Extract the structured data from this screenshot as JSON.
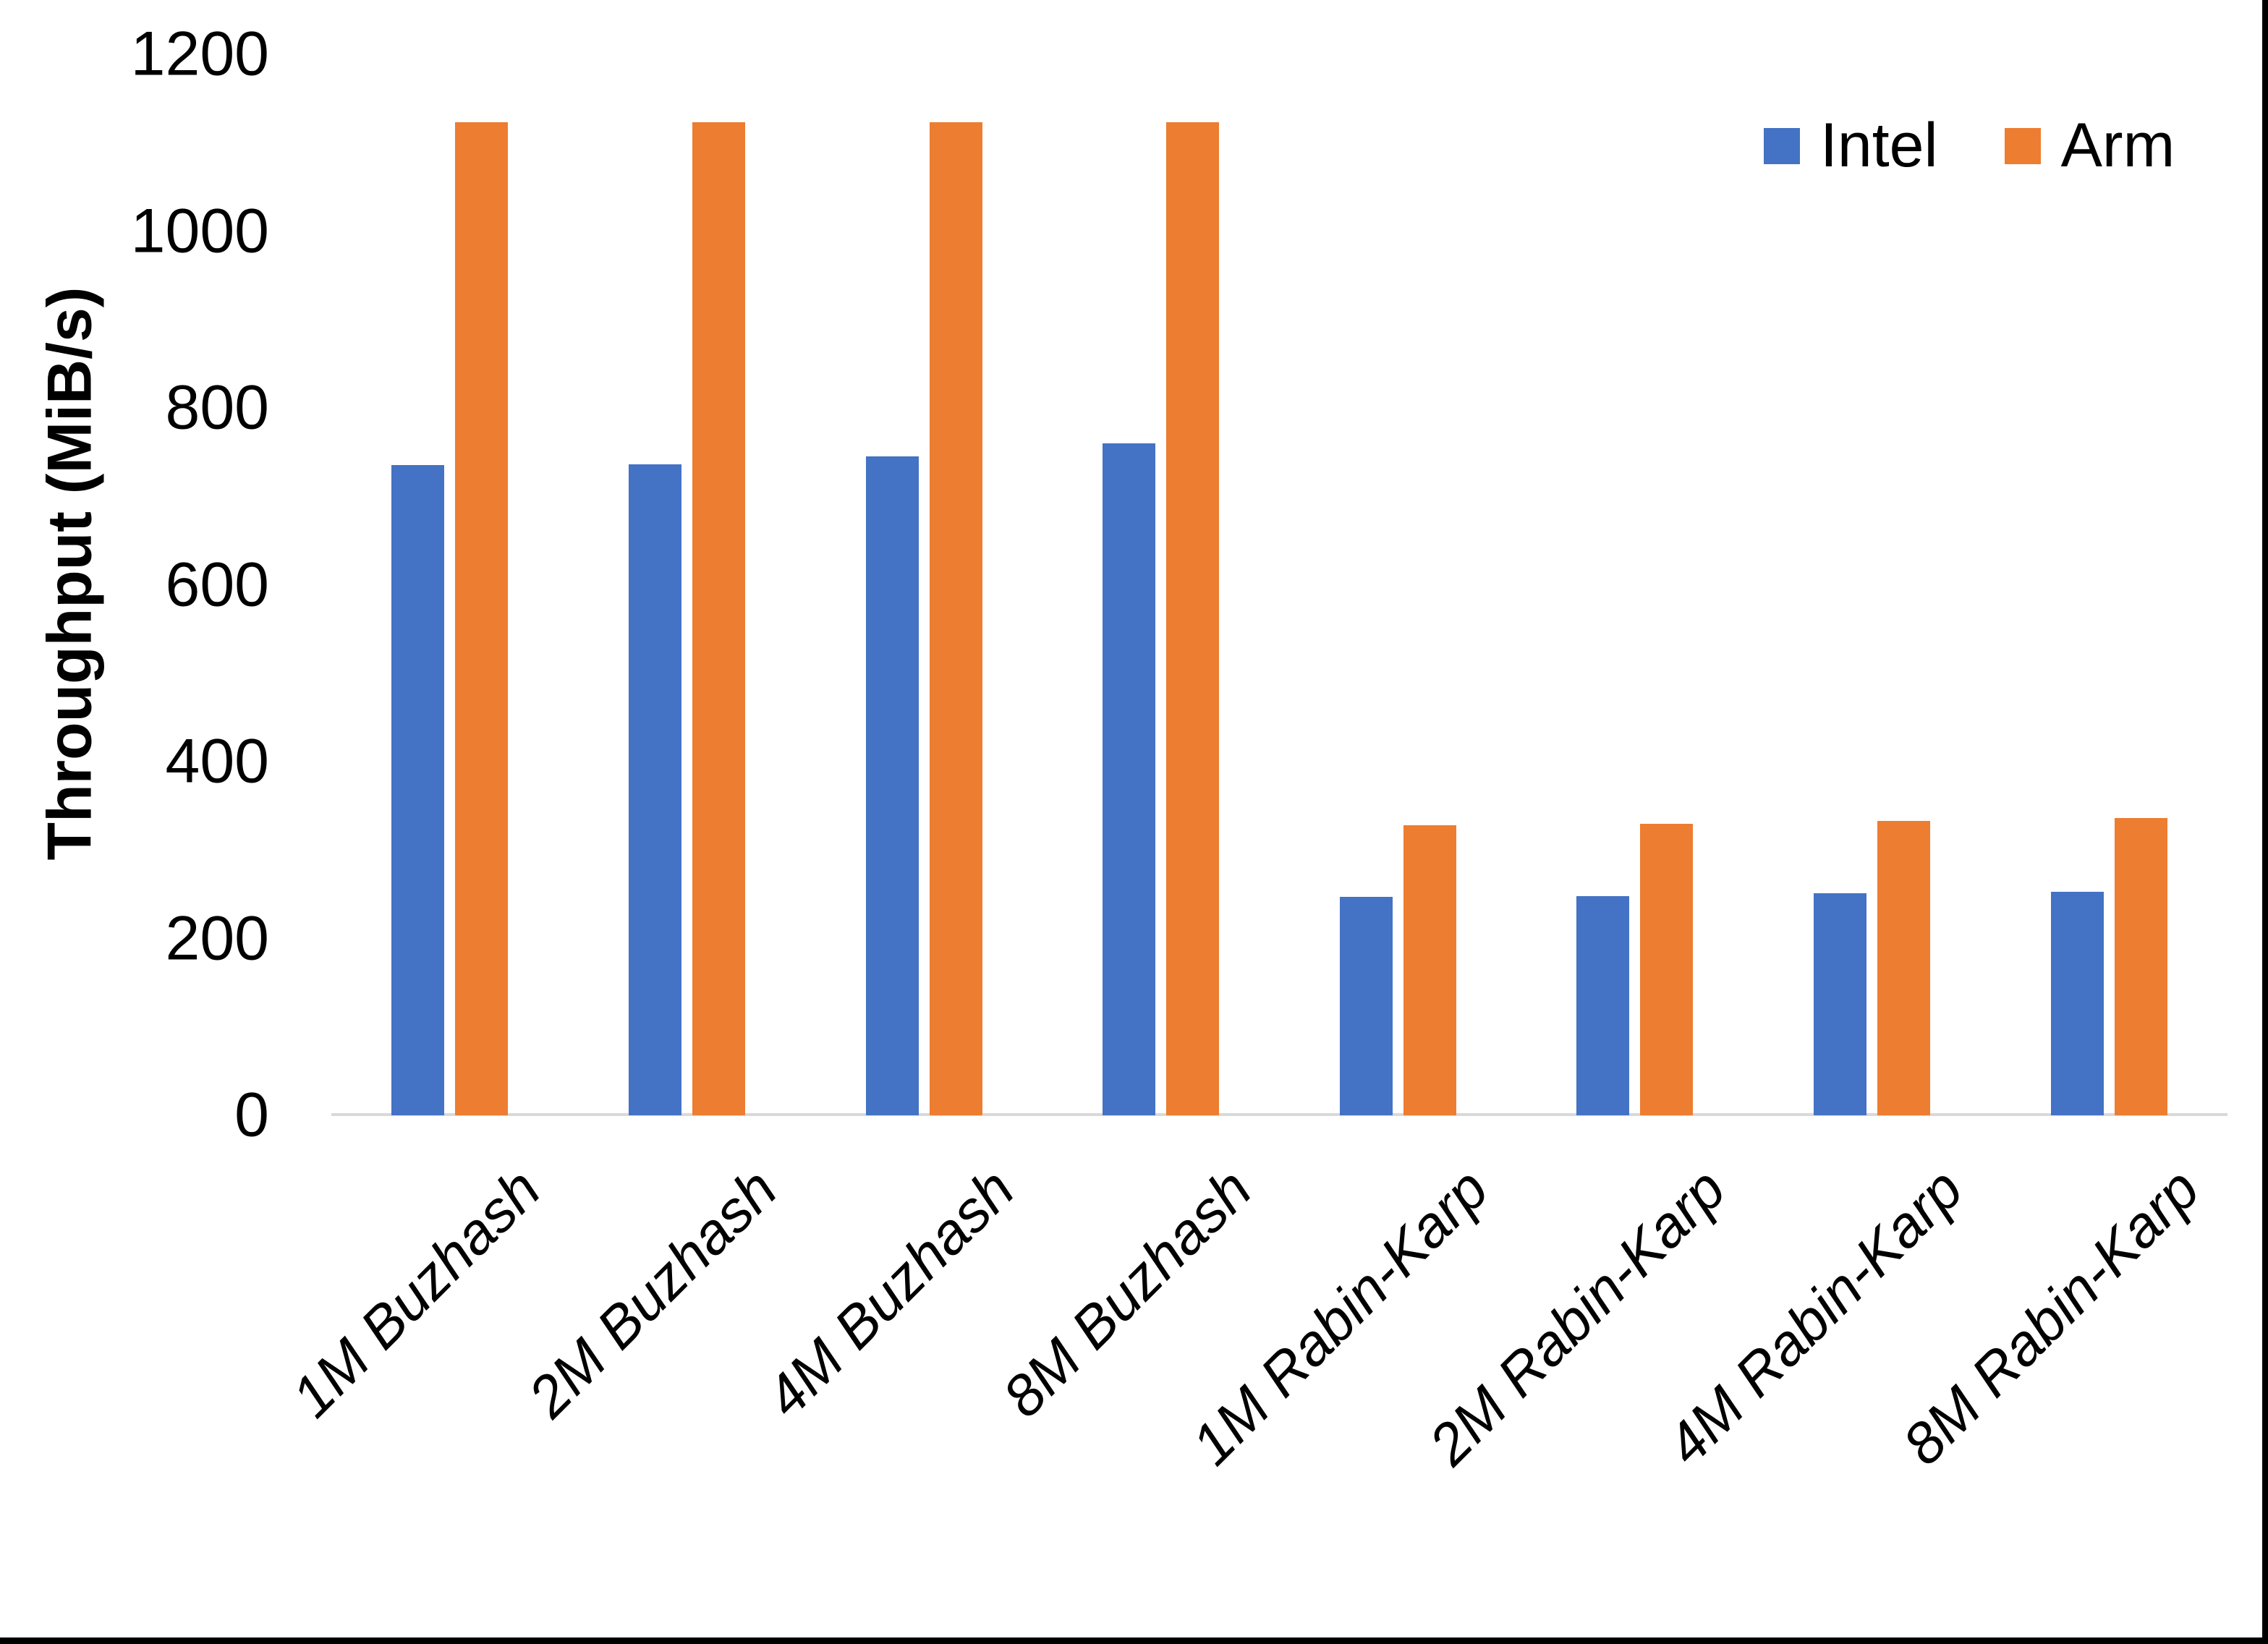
{
  "chart_data": {
    "type": "bar",
    "title": "",
    "categories": [
      "1M Buzhash",
      "2M Buzhash",
      "4M Buzhash",
      "8M Buzhash",
      "1M Rabin-Karp",
      "2M Rabin-Karp",
      "4M Rabin-Karp",
      "8M Rabin-Karp"
    ],
    "series": [
      {
        "name": "Intel",
        "color": "#4472C4",
        "values": [
          735,
          736,
          745,
          760,
          247,
          248,
          251,
          253
        ]
      },
      {
        "name": "Arm",
        "color": "#ED7D31",
        "values": [
          1123,
          1123,
          1123,
          1123,
          328,
          330,
          333,
          336
        ]
      }
    ],
    "xlabel": "",
    "ylabel": "Throughput (MiB/s)",
    "ylim": [
      0,
      1200
    ],
    "yticks": [
      0,
      200,
      400,
      600,
      800,
      1000,
      1200
    ],
    "grid": false,
    "legend_position": "top-right"
  },
  "legend": {
    "items": [
      {
        "label": "Intel",
        "color": "#4472C4"
      },
      {
        "label": "Arm",
        "color": "#ED7D31"
      }
    ]
  },
  "colors": {
    "axis_line": "#D9D9D9",
    "text": "#000000",
    "screen_edge": "#000000",
    "background": "#FFFFFF"
  }
}
